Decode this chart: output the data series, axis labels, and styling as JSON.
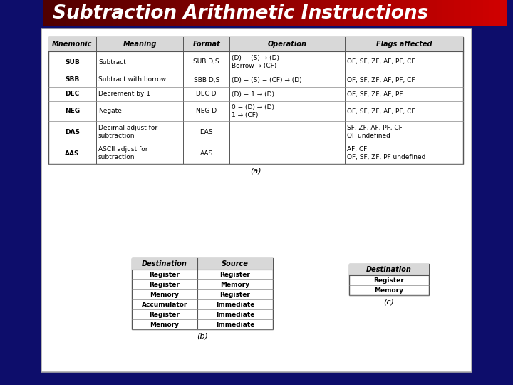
{
  "title": "Subtraction Arithmetic Instructions",
  "bg_color": "#0d0d6b",
  "slide_bg": "#f5f5f5",
  "table1_headers": [
    "Mnemonic",
    "Meaning",
    "Format",
    "Operation",
    "Flags affected"
  ],
  "table1_rows": [
    [
      "SUB",
      "Subtract",
      "SUB D,S",
      "(D) − (S) → (D)\nBorrow → (CF)",
      "OF, SF, ZF, AF, PF, CF"
    ],
    [
      "SBB",
      "Subtract with borrow",
      "SBB D,S",
      "(D) − (S) − (CF) → (D)",
      "OF, SF, ZF, AF, PF, CF"
    ],
    [
      "DEC",
      "Decrement by 1",
      "DEC D",
      "(D) − 1 → (D)",
      "OF, SF, ZF, AF, PF"
    ],
    [
      "NEG",
      "Negate",
      "NEG D",
      "0 − (D) → (D)\n1 → (CF)",
      "OF, SF, ZF, AF, PF, CF"
    ],
    [
      "DAS",
      "Decimal adjust for\nsubtraction",
      "DAS",
      "",
      "SF, ZF, AF, PF, CF\nOF undefined"
    ],
    [
      "AAS",
      "ASCII adjust for\nsubtraction",
      "AAS",
      "",
      "AF, CF\nOF, SF, ZF, PF undefined"
    ]
  ],
  "label_a": "(a)",
  "table2_headers": [
    "Destination",
    "Source"
  ],
  "table2_rows": [
    [
      "Register",
      "Register"
    ],
    [
      "Register",
      "Memory"
    ],
    [
      "Memory",
      "Register"
    ],
    [
      "Accumulator",
      "Immediate"
    ],
    [
      "Register",
      "Immediate"
    ],
    [
      "Memory",
      "Immediate"
    ]
  ],
  "label_b": "(b)",
  "table3_header": "Destination",
  "table3_rows": [
    "Register",
    "Memory"
  ],
  "label_c": "(c)"
}
